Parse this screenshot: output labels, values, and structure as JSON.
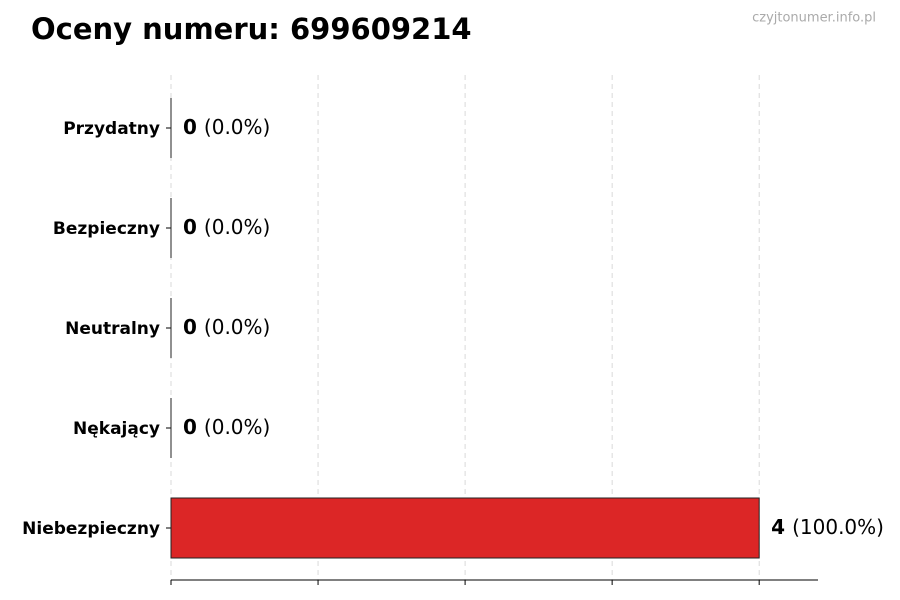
{
  "chart_data": {
    "type": "barh",
    "title": "Oceny numeru: 699609214",
    "watermark": "czyjtonumer.info.pl",
    "categories": [
      "Przydatny",
      "Bezpieczny",
      "Neutralny",
      "Nękający",
      "Niebezpieczny"
    ],
    "values": [
      0,
      0,
      0,
      0,
      4
    ],
    "percent_labels": [
      "(0.0%)",
      "(0.0%)",
      "(0.0%)",
      "(0.0%)",
      "(100.0%)"
    ],
    "color": "#dc2626",
    "xlim": [
      0,
      4.4
    ],
    "xticks": [
      0,
      1,
      2,
      3,
      4
    ],
    "grid": true
  }
}
